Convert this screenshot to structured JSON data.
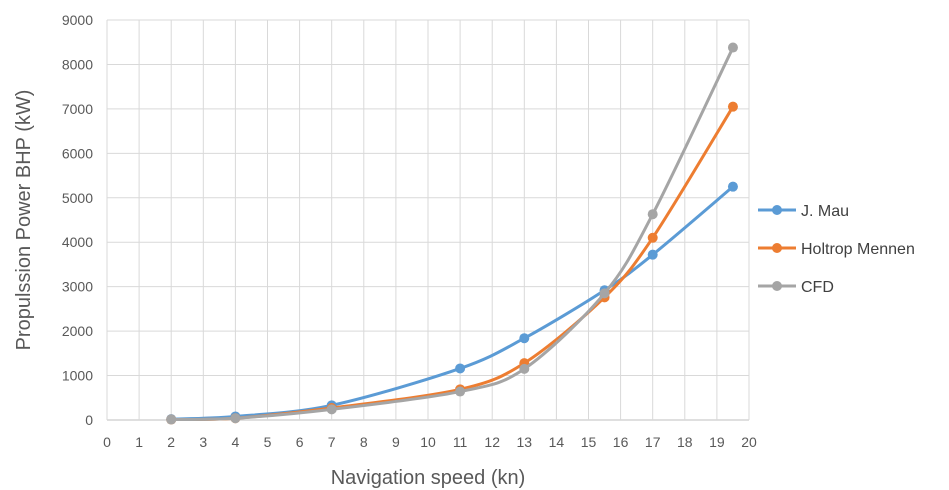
{
  "chart_data": {
    "type": "line",
    "title": "",
    "xlabel": "Navigation speed (kn)",
    "ylabel": "Propulssion Power BHP (kW)",
    "xlim": [
      0,
      20
    ],
    "ylim": [
      0,
      9000
    ],
    "xticks": [
      "0",
      "1",
      "2",
      "3",
      "4",
      "5",
      "6",
      "7",
      "8",
      "9",
      "10",
      "11",
      "12",
      "13",
      "14",
      "15",
      "16",
      "17",
      "18",
      "19",
      "20"
    ],
    "yticks": [
      "0",
      "1000",
      "2000",
      "3000",
      "4000",
      "5000",
      "6000",
      "7000",
      "8000",
      "9000"
    ],
    "grid": "vertical and horizontal",
    "legend_position": "right",
    "series": [
      {
        "name": "J. Mau",
        "color": "#5B9BD5",
        "points": [
          [
            2,
            20
          ],
          [
            4,
            80
          ],
          [
            7,
            330
          ],
          [
            11,
            1160
          ],
          [
            13,
            1840
          ],
          [
            15.5,
            2920
          ],
          [
            17,
            3720
          ],
          [
            19.5,
            5250
          ]
        ]
      },
      {
        "name": "Holtrop Mennen",
        "color": "#ED7D31",
        "points": [
          [
            2,
            10
          ],
          [
            4,
            40
          ],
          [
            7,
            270
          ],
          [
            11,
            690
          ],
          [
            13,
            1280
          ],
          [
            15.5,
            2760
          ],
          [
            17,
            4100
          ],
          [
            19.5,
            7050
          ]
        ]
      },
      {
        "name": "CFD",
        "color": "#A5A5A5",
        "points": [
          [
            2,
            10
          ],
          [
            4,
            40
          ],
          [
            7,
            240
          ],
          [
            11,
            640
          ],
          [
            13,
            1150
          ],
          [
            15.5,
            2850
          ],
          [
            17,
            4630
          ],
          [
            19.5,
            8380
          ]
        ]
      }
    ]
  }
}
